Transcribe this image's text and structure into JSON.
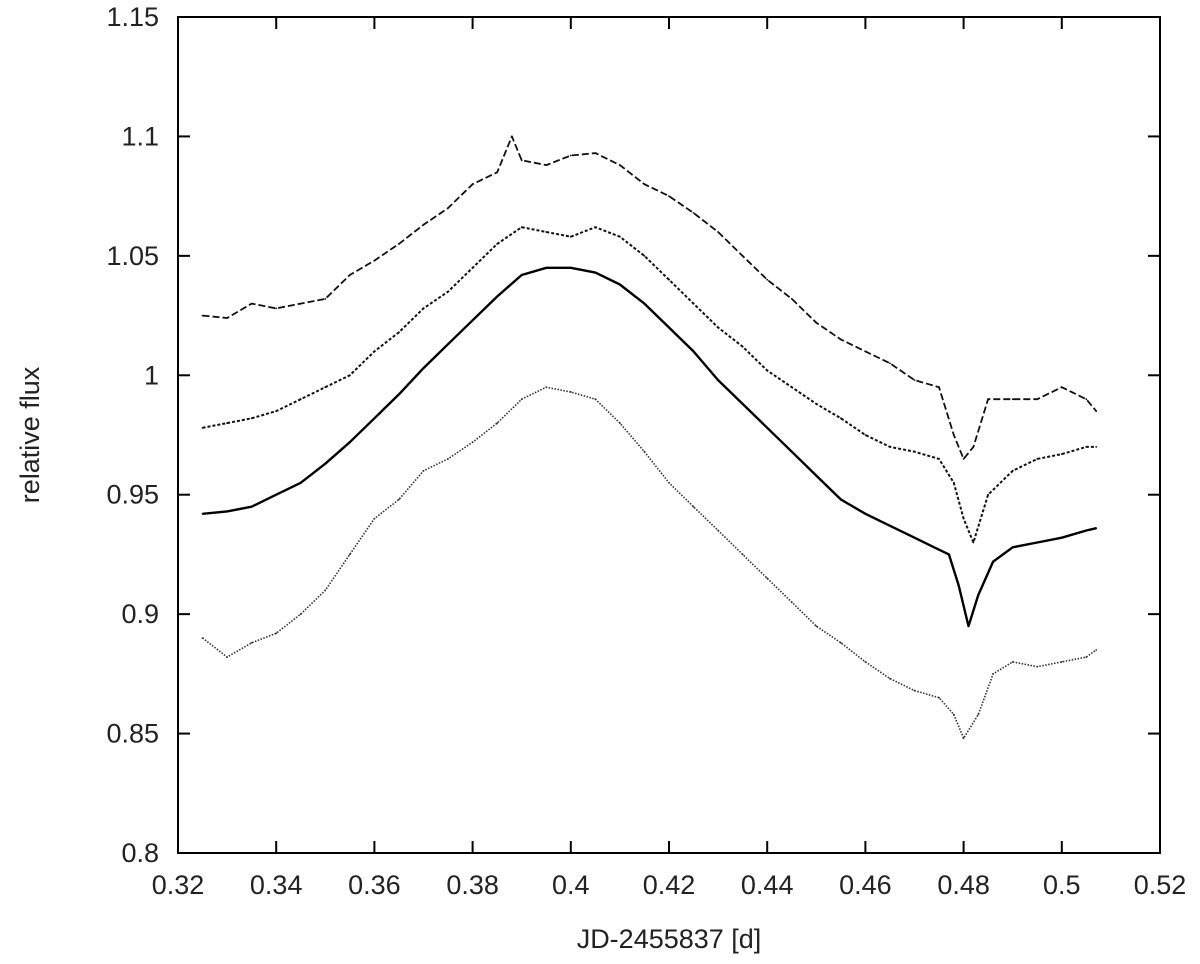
{
  "chart_data": {
    "type": "line",
    "title": "",
    "xlabel": "JD-2455837 [d]",
    "ylabel": "relative flux",
    "xlim": [
      0.32,
      0.52
    ],
    "ylim": [
      0.8,
      1.15
    ],
    "xticks": [
      "0.32",
      "0.34",
      "0.36",
      "0.38",
      "0.4",
      "0.42",
      "0.44",
      "0.46",
      "0.48",
      "0.5",
      "0.52"
    ],
    "yticks": [
      "0.8",
      "0.85",
      "0.9",
      "0.95",
      "1",
      "1.05",
      "1.1",
      "1.15"
    ],
    "grid": false,
    "legend": "none",
    "series": [
      {
        "style": "dashed",
        "color": "#111111",
        "x": [
          0.325,
          0.33,
          0.335,
          0.34,
          0.345,
          0.35,
          0.355,
          0.36,
          0.365,
          0.37,
          0.375,
          0.38,
          0.385,
          0.388,
          0.39,
          0.395,
          0.4,
          0.405,
          0.41,
          0.415,
          0.42,
          0.425,
          0.43,
          0.435,
          0.44,
          0.445,
          0.45,
          0.455,
          0.46,
          0.465,
          0.47,
          0.475,
          0.478,
          0.48,
          0.482,
          0.485,
          0.49,
          0.495,
          0.5,
          0.505,
          0.507
        ],
        "y": [
          1.025,
          1.024,
          1.03,
          1.028,
          1.03,
          1.032,
          1.042,
          1.048,
          1.055,
          1.063,
          1.07,
          1.08,
          1.085,
          1.1,
          1.09,
          1.088,
          1.092,
          1.093,
          1.088,
          1.08,
          1.075,
          1.068,
          1.06,
          1.05,
          1.04,
          1.032,
          1.022,
          1.015,
          1.01,
          1.005,
          0.998,
          0.995,
          0.975,
          0.965,
          0.97,
          0.99,
          0.99,
          0.99,
          0.995,
          0.99,
          0.985
        ]
      },
      {
        "style": "short-dashed",
        "color": "#111111",
        "x": [
          0.325,
          0.33,
          0.335,
          0.34,
          0.345,
          0.35,
          0.355,
          0.36,
          0.365,
          0.37,
          0.375,
          0.38,
          0.385,
          0.39,
          0.395,
          0.4,
          0.405,
          0.41,
          0.415,
          0.42,
          0.425,
          0.43,
          0.435,
          0.44,
          0.445,
          0.45,
          0.455,
          0.46,
          0.465,
          0.47,
          0.475,
          0.478,
          0.48,
          0.482,
          0.485,
          0.49,
          0.495,
          0.5,
          0.505,
          0.507
        ],
        "y": [
          0.978,
          0.98,
          0.982,
          0.985,
          0.99,
          0.995,
          1.0,
          1.01,
          1.018,
          1.028,
          1.035,
          1.045,
          1.055,
          1.062,
          1.06,
          1.058,
          1.062,
          1.058,
          1.05,
          1.04,
          1.03,
          1.02,
          1.012,
          1.002,
          0.995,
          0.988,
          0.982,
          0.975,
          0.97,
          0.968,
          0.965,
          0.955,
          0.94,
          0.93,
          0.95,
          0.96,
          0.965,
          0.967,
          0.97,
          0.97
        ]
      },
      {
        "style": "solid",
        "color": "#000000",
        "x": [
          0.325,
          0.33,
          0.335,
          0.34,
          0.345,
          0.35,
          0.355,
          0.36,
          0.365,
          0.37,
          0.375,
          0.38,
          0.385,
          0.39,
          0.395,
          0.4,
          0.405,
          0.41,
          0.415,
          0.42,
          0.425,
          0.43,
          0.435,
          0.44,
          0.445,
          0.45,
          0.455,
          0.46,
          0.465,
          0.47,
          0.474,
          0.477,
          0.479,
          0.481,
          0.483,
          0.486,
          0.49,
          0.495,
          0.5,
          0.505,
          0.507
        ],
        "y": [
          0.942,
          0.943,
          0.945,
          0.95,
          0.955,
          0.963,
          0.972,
          0.982,
          0.992,
          1.003,
          1.013,
          1.023,
          1.033,
          1.042,
          1.045,
          1.045,
          1.043,
          1.038,
          1.03,
          1.02,
          1.01,
          0.998,
          0.988,
          0.978,
          0.968,
          0.958,
          0.948,
          0.942,
          0.937,
          0.932,
          0.928,
          0.925,
          0.912,
          0.895,
          0.908,
          0.922,
          0.928,
          0.93,
          0.932,
          0.935,
          0.936
        ]
      },
      {
        "style": "dotted",
        "color": "#333333",
        "x": [
          0.325,
          0.33,
          0.335,
          0.34,
          0.345,
          0.35,
          0.355,
          0.36,
          0.365,
          0.37,
          0.375,
          0.38,
          0.385,
          0.39,
          0.395,
          0.4,
          0.405,
          0.41,
          0.415,
          0.42,
          0.425,
          0.43,
          0.435,
          0.44,
          0.445,
          0.45,
          0.455,
          0.46,
          0.465,
          0.47,
          0.475,
          0.478,
          0.48,
          0.483,
          0.486,
          0.49,
          0.495,
          0.5,
          0.505,
          0.507
        ],
        "y": [
          0.89,
          0.882,
          0.888,
          0.892,
          0.9,
          0.91,
          0.925,
          0.94,
          0.948,
          0.96,
          0.965,
          0.972,
          0.98,
          0.99,
          0.995,
          0.993,
          0.99,
          0.98,
          0.968,
          0.955,
          0.945,
          0.935,
          0.925,
          0.915,
          0.905,
          0.895,
          0.888,
          0.88,
          0.873,
          0.868,
          0.865,
          0.858,
          0.848,
          0.858,
          0.875,
          0.88,
          0.878,
          0.88,
          0.882,
          0.885
        ]
      }
    ]
  }
}
